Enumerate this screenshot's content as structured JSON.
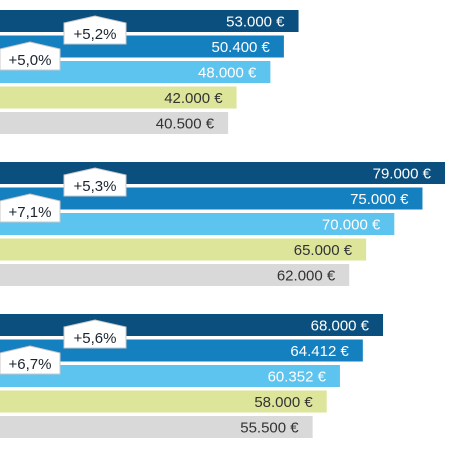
{
  "chart_data": {
    "type": "bar",
    "orientation": "horizontal",
    "unit": "€",
    "xlim": [
      0,
      79000
    ],
    "colors": [
      "#0b4f7e",
      "#1580bf",
      "#5cc4ee",
      "#dde59a",
      "#d9d9d9"
    ],
    "label_colors": [
      "#ffffff",
      "#ffffff",
      "#ffffff",
      "#333333",
      "#333333"
    ],
    "groups": [
      {
        "values": [
          53000,
          50400,
          48000,
          42000,
          40500
        ],
        "labels": [
          "53.000 €",
          "50.400 €",
          "48.000 €",
          "42.000 €",
          "40.500 €"
        ],
        "badges": [
          "+5,2%",
          "+5,0%"
        ]
      },
      {
        "values": [
          79000,
          75000,
          70000,
          65000,
          62000
        ],
        "labels": [
          "79.000 €",
          "75.000 €",
          "70.000 €",
          "65.000 €",
          "62.000 €"
        ],
        "badges": [
          "+5,3%",
          "+7,1%"
        ]
      },
      {
        "values": [
          68000,
          64412,
          60352,
          58000,
          55500
        ],
        "labels": [
          "68.000 €",
          "64.412 €",
          "60.352 €",
          "58.000 €",
          "55.500 €"
        ],
        "badges": [
          "+5,6%",
          "+6,7%"
        ]
      }
    ]
  }
}
